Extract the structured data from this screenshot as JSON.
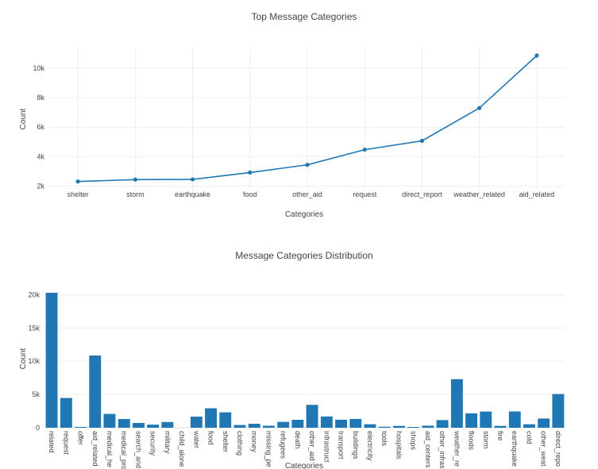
{
  "colors": {
    "series": "#1f77b4",
    "grid": "#eeeeee",
    "text": "#444444"
  },
  "chart_data": [
    {
      "type": "line",
      "title": "Top Message Categories",
      "xlabel": "Categories",
      "ylabel": "Count",
      "categories": [
        "shelter",
        "storm",
        "earthquake",
        "food",
        "other_aid",
        "request",
        "direct_report",
        "weather_related",
        "aid_related"
      ],
      "values": [
        2310,
        2440,
        2450,
        2920,
        3440,
        4470,
        5070,
        7300,
        10860
      ],
      "ylim": [
        1700,
        11400
      ],
      "yticks": [
        2000,
        4000,
        6000,
        8000,
        10000
      ],
      "ytick_labels": [
        "2k",
        "4k",
        "6k",
        "8k",
        "10k"
      ],
      "grid": true,
      "markers": true
    },
    {
      "type": "bar",
      "title": "Message Categories Distribution",
      "xlabel": "Categories",
      "ylabel": "Count",
      "categories": [
        "related",
        "request",
        "offer",
        "aid_related",
        "medical_he",
        "medical_pro",
        "search_and",
        "security",
        "military",
        "child_alone",
        "water",
        "food",
        "shelter",
        "clothing",
        "money",
        "missing_pe",
        "refugees",
        "death",
        "other_aid",
        "infrastruct",
        "transport",
        "buildings",
        "electricity",
        "tools",
        "hospitals",
        "shops",
        "aid_centers",
        "other_infras",
        "weather_re",
        "floods",
        "storm",
        "fire",
        "earthquake",
        "cold",
        "other_weat",
        "direct_repo"
      ],
      "values": [
        20300,
        4470,
        120,
        10860,
        2080,
        1310,
        720,
        470,
        860,
        0,
        1670,
        2920,
        2310,
        410,
        600,
        300,
        880,
        1190,
        3440,
        1700,
        1200,
        1330,
        530,
        160,
        280,
        120,
        310,
        1150,
        7300,
        2160,
        2440,
        280,
        2450,
        530,
        1380,
        5070
      ],
      "ylim": [
        0,
        21000
      ],
      "yticks": [
        0,
        5000,
        10000,
        15000,
        20000
      ],
      "ytick_labels": [
        "0",
        "5k",
        "10k",
        "15k",
        "20k"
      ],
      "grid": true
    }
  ]
}
